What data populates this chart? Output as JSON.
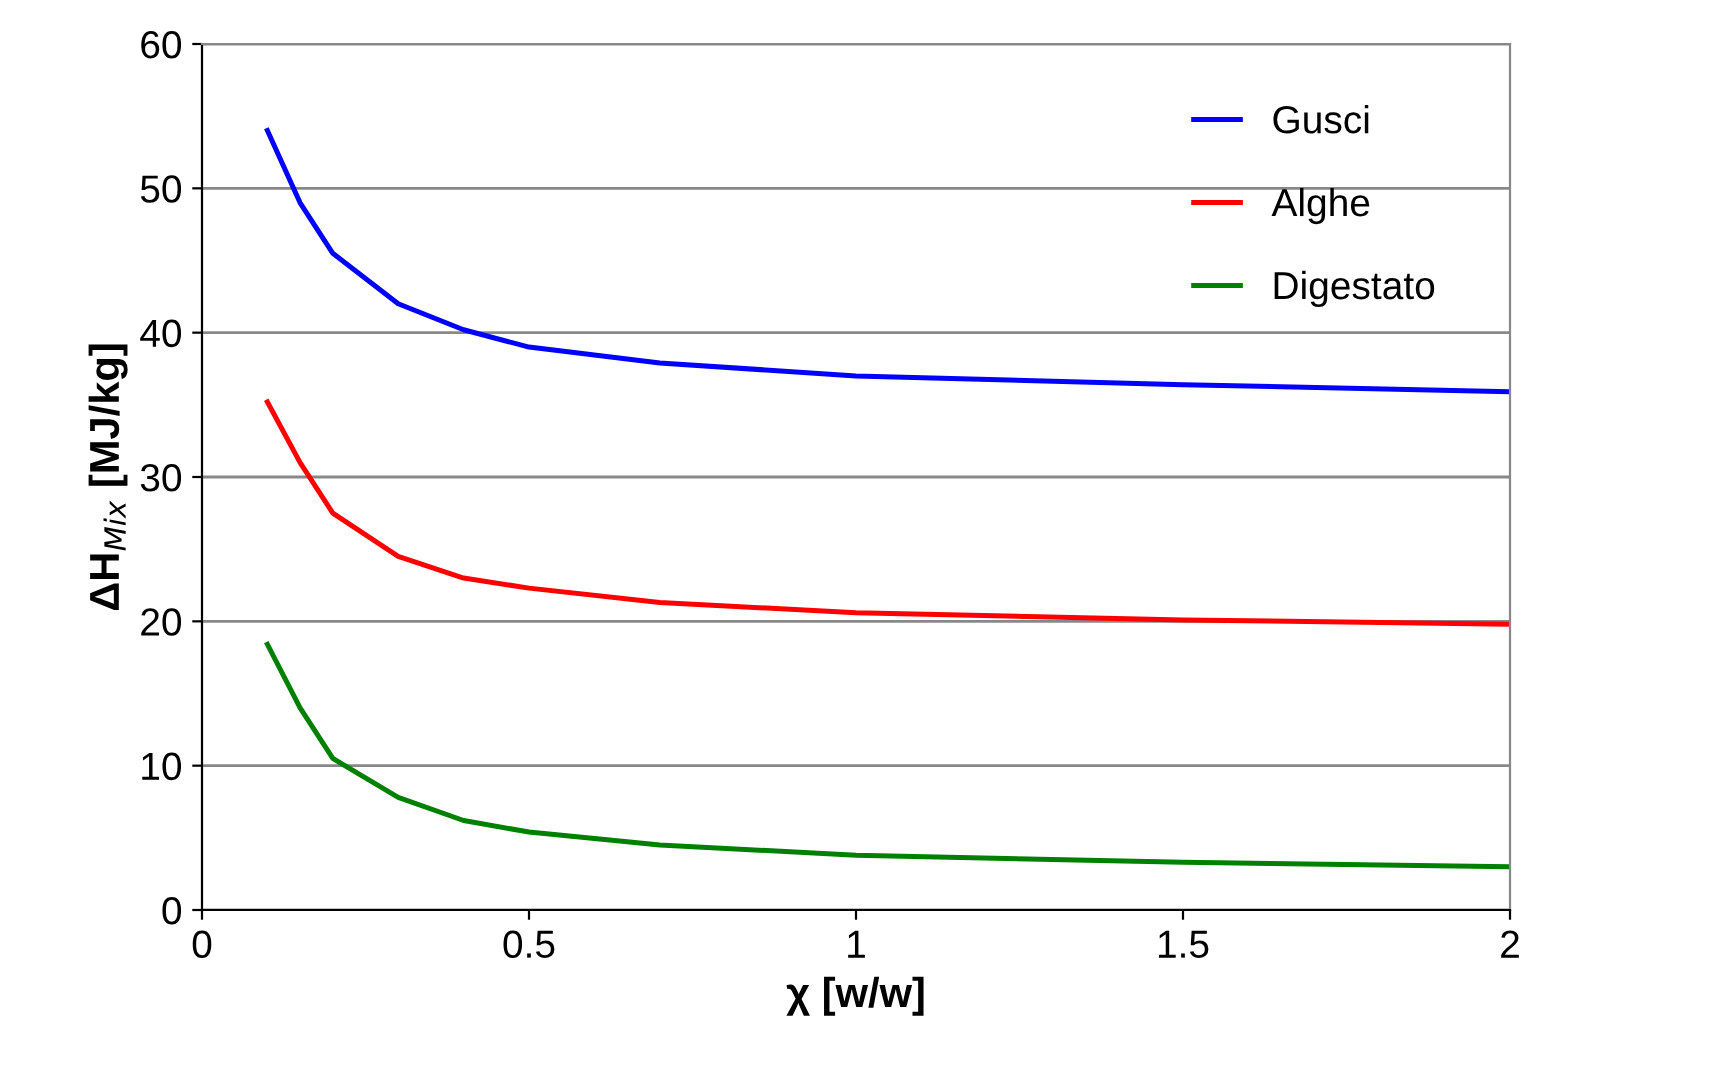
{
  "chart_data": {
    "type": "line",
    "xlabel": "χ [w/w]",
    "ylabel": "ΔH$_{Mix}$ [MJ/kg]",
    "xlim": [
      0,
      2
    ],
    "xticks": [
      0,
      0.5,
      1,
      1.5,
      2
    ],
    "ylim": [
      0,
      60
    ],
    "yticks": [
      0,
      10,
      20,
      30,
      40,
      50,
      60
    ],
    "grid": "y",
    "legend": "top right",
    "marker": "none",
    "line_style": "solid",
    "x": [
      0.1,
      0.15,
      0.2,
      0.3,
      0.4,
      0.5,
      0.7,
      1.0,
      1.5,
      2.0
    ],
    "series": [
      {
        "name": "Gusci",
        "color": "#0000ff",
        "values": [
          54,
          49,
          45.5,
          42,
          40.2,
          39,
          37.9,
          37,
          36.4,
          35.9
        ]
      },
      {
        "name": "Alghe",
        "color": "#ff0000",
        "values": [
          35.2,
          31,
          27.5,
          24.5,
          23,
          22.3,
          21.3,
          20.6,
          20.1,
          19.8
        ]
      },
      {
        "name": "Digestato",
        "color": "#008000",
        "values": [
          18.4,
          14,
          10.5,
          7.8,
          6.2,
          5.4,
          4.5,
          3.8,
          3.3,
          3.0
        ]
      }
    ]
  }
}
